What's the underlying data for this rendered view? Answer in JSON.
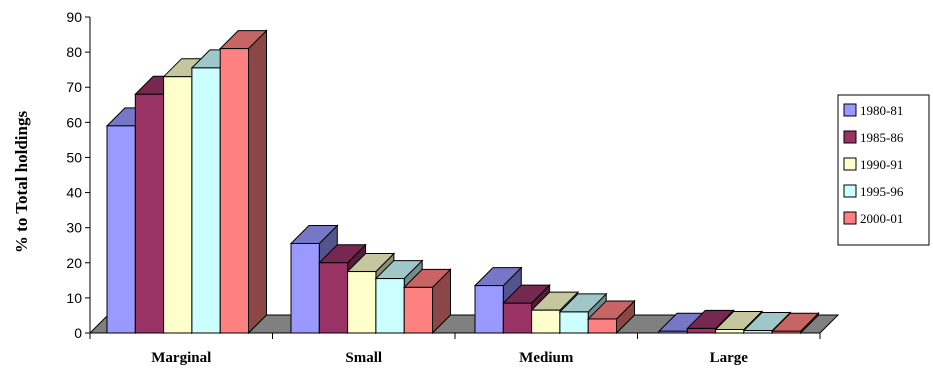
{
  "chart_data": {
    "type": "bar",
    "three_d": true,
    "title": "",
    "xlabel": "",
    "ylabel": "% to Total holdings",
    "ylim": [
      0,
      90
    ],
    "yticks": [
      "0",
      "10",
      "20",
      "30",
      "40",
      "50",
      "60",
      "70",
      "80",
      "90"
    ],
    "categories": [
      "Marginal",
      "Small",
      "Medium",
      "Large"
    ],
    "series": [
      {
        "name": "1980-81",
        "color": "#9999ff",
        "values": [
          59,
          25.5,
          13.5,
          0.5
        ]
      },
      {
        "name": "1985-86",
        "color": "#993366",
        "values": [
          68,
          20,
          8.5,
          1.3
        ]
      },
      {
        "name": "1990-91",
        "color": "#ffffcc",
        "values": [
          73,
          17.5,
          6.5,
          1
        ]
      },
      {
        "name": "1995-96",
        "color": "#ccffff",
        "values": [
          75.5,
          15.5,
          6,
          0.7
        ]
      },
      {
        "name": "2000-01",
        "color": "#ff8080",
        "values": [
          81,
          13,
          4,
          0.5
        ]
      }
    ],
    "floor_color": "#808080",
    "grid": false,
    "legend_position": "right"
  }
}
